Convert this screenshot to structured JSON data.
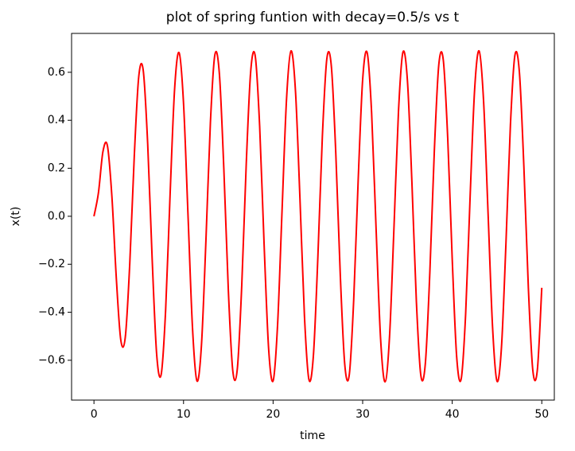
{
  "chart_data": {
    "type": "line",
    "title": "plot of spring funtion with decay=0.5/s vs t",
    "xlabel": "time",
    "ylabel": "x(t)",
    "x": [
      0,
      0.5,
      1,
      1.5,
      2,
      2.5,
      3,
      3.5,
      4,
      4.5,
      5,
      5.5,
      6,
      6.5,
      7,
      7.5,
      8,
      8.5,
      9,
      9.5,
      10,
      10.5,
      11,
      11.5,
      12,
      12.5,
      13,
      13.5,
      14,
      14.5,
      15,
      15.5,
      16,
      16.5,
      17,
      17.5,
      18,
      18.5,
      19,
      19.5,
      20,
      20.5,
      21,
      21.5,
      22,
      22.5,
      23,
      23.5,
      24,
      24.5,
      25,
      25.5,
      26,
      26.5,
      27,
      27.5,
      28,
      28.5,
      29,
      29.5,
      30,
      30.5,
      31,
      31.5,
      32,
      32.5,
      33,
      33.5,
      34,
      34.5,
      35,
      35.5,
      36,
      36.5,
      37,
      37.5,
      38,
      38.5,
      39,
      39.5,
      40,
      40.5,
      41,
      41.5,
      42,
      42.5,
      43,
      43.5,
      44,
      44.5,
      45,
      45.5,
      46,
      46.5,
      47,
      47.5,
      48,
      48.5,
      49,
      49.5,
      50
    ],
    "series": [
      {
        "name": "x(t)",
        "color": "#ff0000",
        "values": [
          0,
          0.098,
          0.269,
          0.294,
          0.083,
          -0.261,
          -0.517,
          -0.503,
          -0.195,
          0.25,
          0.582,
          0.608,
          0.3,
          -0.18,
          -0.575,
          -0.66,
          -0.392,
          0.091,
          0.528,
          0.682,
          0.471,
          0.005,
          -0.464,
          -0.686,
          -0.538,
          -0.102,
          0.39,
          0.673,
          0.595,
          0.198,
          -0.306,
          -0.644,
          -0.638,
          -0.289,
          0.216,
          0.604,
          0.669,
          0.375,
          -0.121,
          -0.551,
          -0.686,
          -0.453,
          0.024,
          0.488,
          0.689,
          0.521,
          0.073,
          -0.415,
          -0.68,
          -0.58,
          -0.169,
          0.332,
          0.656,
          0.627,
          0.263,
          -0.243,
          -0.617,
          -0.662,
          -0.349,
          0.15,
          0.569,
          0.682,
          0.431,
          -0.053,
          -0.509,
          -0.69,
          -0.502,
          -0.044,
          0.437,
          0.684,
          0.564,
          0.141,
          -0.357,
          -0.664,
          -0.613,
          -0.235,
          0.27,
          0.631,
          0.652,
          0.324,
          -0.178,
          -0.587,
          -0.678,
          -0.406,
          0.083,
          0.527,
          0.689,
          0.481,
          0.015,
          -0.459,
          -0.687,
          -0.545,
          -0.112,
          0.382,
          0.671,
          0.6,
          0.207,
          -0.297,
          -0.642,
          -0.642,
          -0.298
        ]
      }
    ],
    "xlim": [
      -2.5,
      51.4
    ],
    "ylim": [
      -0.766,
      0.762
    ],
    "xticks": [
      0,
      10,
      20,
      30,
      40,
      50
    ],
    "yticks": [
      {
        "value": -0.6,
        "label": "−0.6"
      },
      {
        "value": -0.4,
        "label": "−0.4"
      },
      {
        "value": -0.2,
        "label": "−0.2"
      },
      {
        "value": 0,
        "label": "0.0"
      },
      0.2,
      0.4,
      0.6
    ]
  }
}
